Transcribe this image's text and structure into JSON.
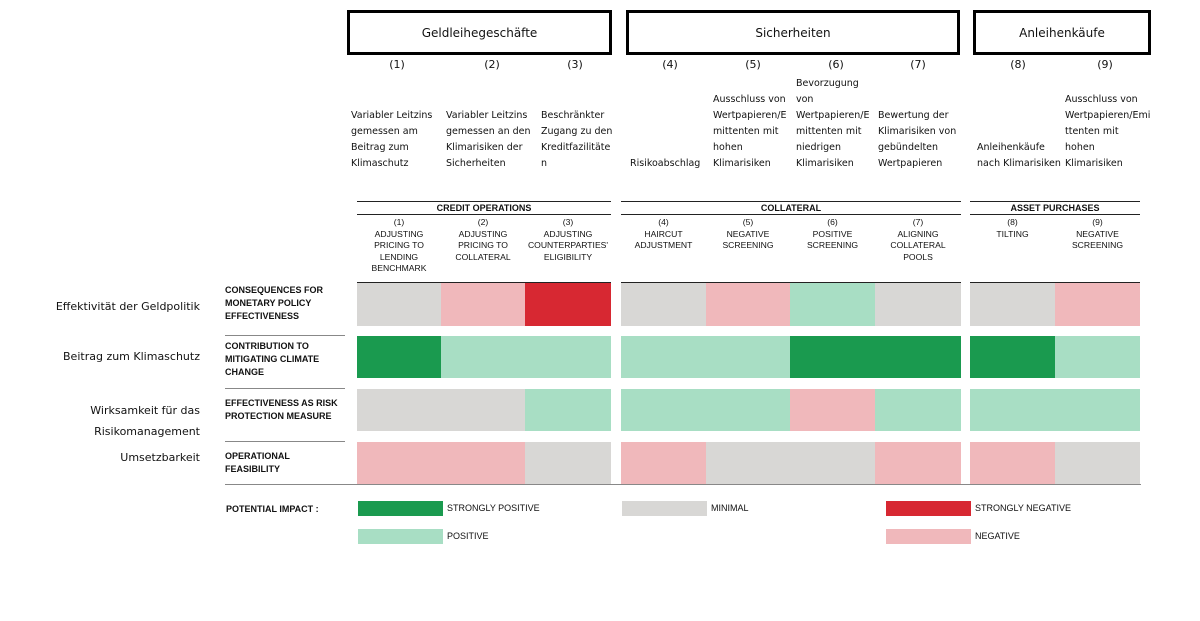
{
  "colors": {
    "strongly_positive": "#1a9a4f",
    "positive": "#a8dec4",
    "minimal": "#d8d7d5",
    "strongly_negative": "#d72832",
    "negative": "#f0b8bb"
  },
  "german_groups": [
    "Geldleihegeschäfte",
    "Sicherheiten",
    "Anleihenkäufe"
  ],
  "german_columns": [
    {
      "num": "(1)",
      "text": "Variabler Leitzins\ngemessen am\nBeitrag zum\nKlimaschutz"
    },
    {
      "num": "(2)",
      "text": "Variabler Leitzins\ngemessen an den\nKlimarisiken der\nSicherheiten"
    },
    {
      "num": "(3)",
      "text": "Beschränkter\nZugang zu den\nKreditfazilitäte\nn"
    },
    {
      "num": "(4)",
      "text": "Risikoabschlag"
    },
    {
      "num": "(5)",
      "text": "Ausschluss von\nWertpapieren/E\nmittenten mit\nhohen\nKlimarisiken"
    },
    {
      "num": "(6)",
      "text": "Bevorzugung\nvon\nWertpapieren/E\nmittenten mit\nniedrigen\nKlimarisiken"
    },
    {
      "num": "(7)",
      "text": "Bewertung der\nKlimarisiken von\ngebündelten\nWertpapieren"
    },
    {
      "num": "(8)",
      "text": "Anleihenkäufe\nnach Klimarisiken"
    },
    {
      "num": "(9)",
      "text": "Ausschluss von\nWertpapieren/Emi\nttenten mit\nhohen\nKlimarisiken"
    }
  ],
  "english_groups": [
    "CREDIT OPERATIONS",
    "COLLATERAL",
    "ASSET PURCHASES"
  ],
  "english_columns": [
    "(1)\nADJUSTING\nPRICING TO\nLENDING\nBENCHMARK",
    "(2)\nADJUSTING\nPRICING TO\nCOLLATERAL",
    "(3)\nADJUSTING\nCOUNTERPARTIES'\nELIGIBILITY",
    "(4)\nHAIRCUT\nADJUSTMENT",
    "(5)\nNEGATIVE\nSCREENING",
    "(6)\nPOSITIVE\nSCREENING",
    "(7)\nALIGNING\nCOLLATERAL\nPOOLS",
    "(8)\nTILTING",
    "(9)\nNEGATIVE\nSCREENING"
  ],
  "rows": [
    {
      "de": "Effektivität der Geldpolitik",
      "en": "CONSEQUENCES FOR MONETARY POLICY EFFECTIVENESS",
      "values": [
        "minimal",
        "negative",
        "strongly_negative",
        "minimal",
        "negative",
        "positive",
        "minimal",
        "minimal",
        "negative"
      ]
    },
    {
      "de": "Beitrag zum Klimaschutz",
      "en": "CONTRIBUTION TO MITIGATING CLIMATE CHANGE",
      "values": [
        "strongly_positive",
        "positive",
        "positive",
        "positive",
        "positive",
        "strongly_positive",
        "strongly_positive",
        "strongly_positive",
        "positive"
      ]
    },
    {
      "de": "Wirksamkeit für das\nRisikomanagement",
      "en": "EFFECTIVENESS AS RISK PROTECTION MEASURE",
      "values": [
        "minimal",
        "minimal",
        "positive",
        "positive",
        "positive",
        "negative",
        "positive",
        "positive",
        "positive"
      ]
    },
    {
      "de": "Umsetzbarkeit",
      "en": "OPERATIONAL FEASIBILITY",
      "values": [
        "negative",
        "negative",
        "minimal",
        "negative",
        "minimal",
        "minimal",
        "negative",
        "negative",
        "minimal"
      ]
    }
  ],
  "legend": {
    "title": "POTENTIAL IMPACT :",
    "items": [
      {
        "key": "strongly_positive",
        "label": "STRONGLY POSITIVE"
      },
      {
        "key": "positive",
        "label": "POSITIVE"
      },
      {
        "key": "minimal",
        "label": "MINIMAL"
      },
      {
        "key": "strongly_negative",
        "label": "STRONGLY NEGATIVE"
      },
      {
        "key": "negative",
        "label": "NEGATIVE"
      }
    ]
  }
}
